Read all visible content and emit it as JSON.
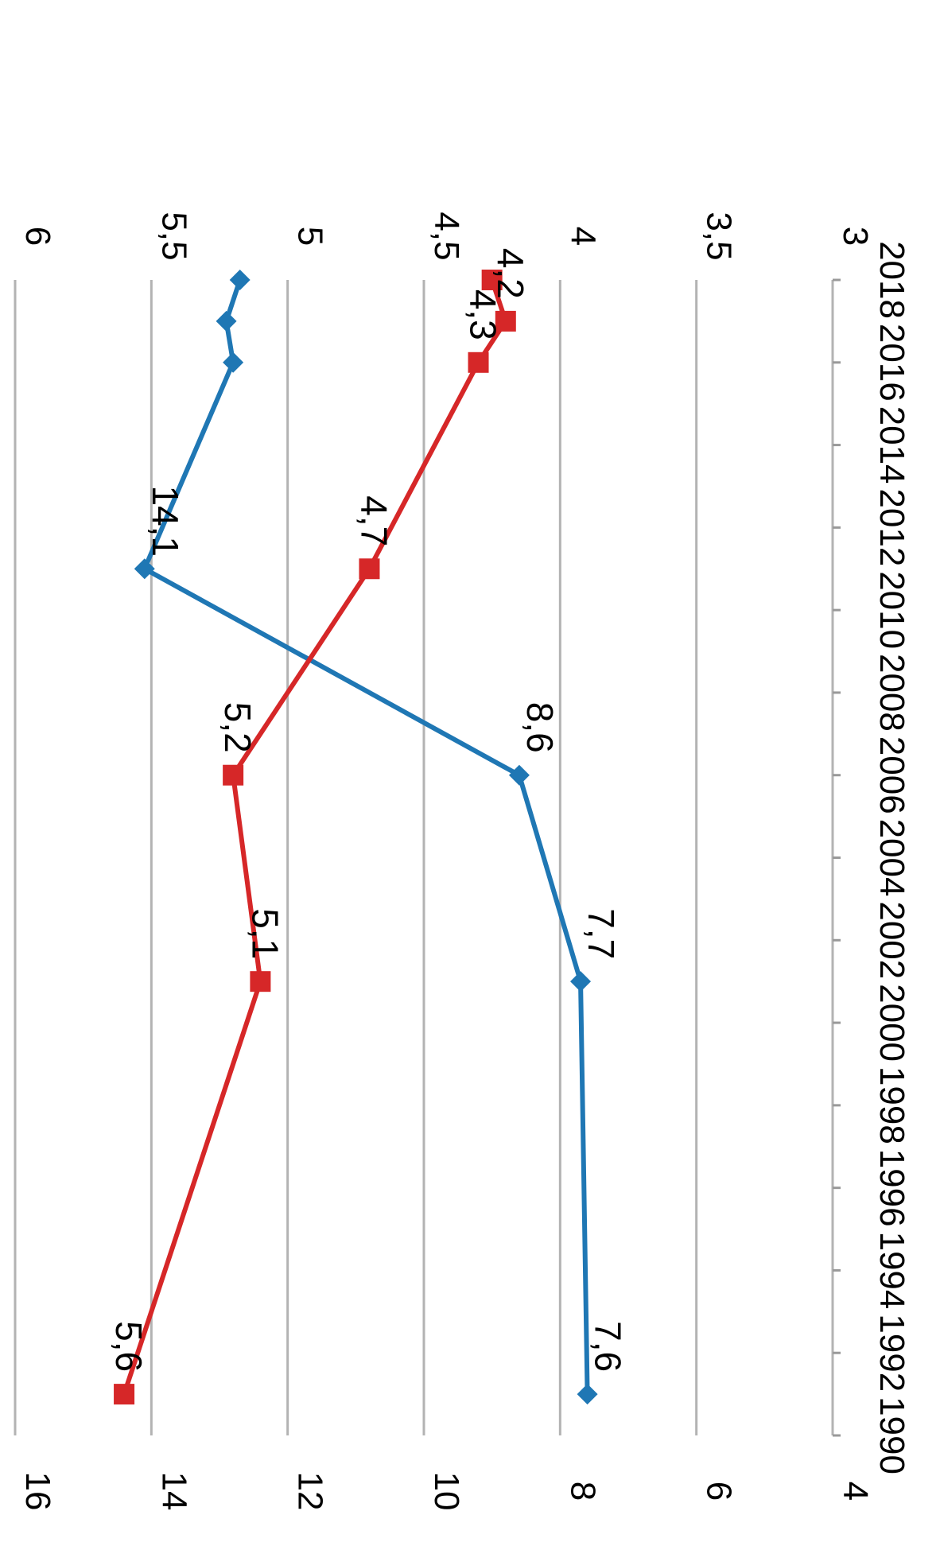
{
  "chart_data": {
    "type": "line",
    "orientation": "rotated-90-clockwise",
    "x": [
      1991,
      2001,
      2006,
      2011,
      2016,
      2017,
      2018
    ],
    "xlim": [
      1990,
      2018
    ],
    "x_ticks": [
      "1990",
      "1992",
      "1994",
      "1996",
      "1998",
      "2000",
      "2002",
      "2004",
      "2006",
      "2008",
      "2010",
      "2012",
      "2014",
      "2016",
      "2018"
    ],
    "y_left_ticks": [
      "4",
      "6",
      "8",
      "10",
      "12",
      "14",
      "16"
    ],
    "y_left_lim": [
      4,
      16
    ],
    "y_right_ticks": [
      "3",
      "3,5",
      "4",
      "4,5",
      "5",
      "5,5",
      "6"
    ],
    "y_right_lim": [
      3,
      6
    ],
    "grid": true,
    "series": [
      {
        "axis": "left",
        "color": "#1f77b4",
        "marker": "diamond",
        "values": [
          7.6,
          7.7,
          8.6,
          14.1,
          12.8,
          12.9,
          12.7
        ],
        "labels": [
          "7,6",
          "7,7",
          "8,6",
          "14,1",
          "",
          "",
          ""
        ]
      },
      {
        "axis": "right",
        "color": "#d62728",
        "marker": "square",
        "values": [
          5.6,
          5.1,
          5.2,
          4.7,
          4.3,
          4.2,
          4.25
        ],
        "labels": [
          "5,6",
          "5,1",
          "5,2",
          "4,7",
          "4,3",
          "4,2",
          ""
        ]
      }
    ]
  }
}
